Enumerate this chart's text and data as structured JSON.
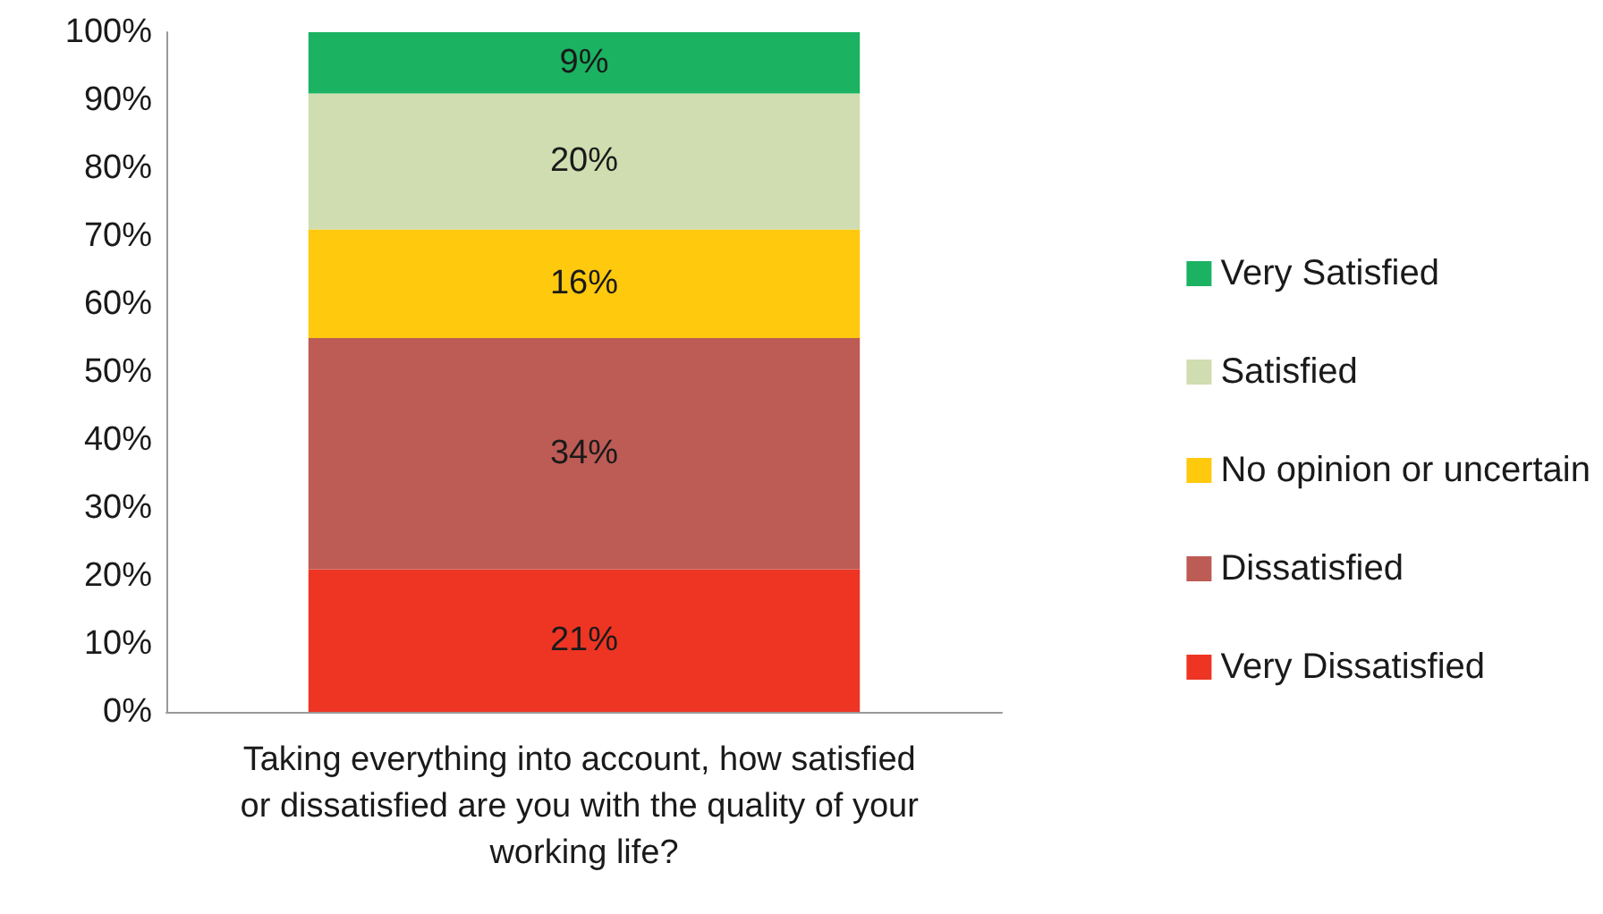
{
  "chart_data": {
    "type": "bar",
    "stacked": true,
    "categories": [
      "Taking everything into account, how satisfied or dissatisfied are you with the quality of your working life?"
    ],
    "series": [
      {
        "name": "Very Dissatisfied",
        "color": "#ee3524",
        "values": [
          21
        ],
        "value_labels": [
          "21%"
        ]
      },
      {
        "name": "Dissatisfied",
        "color": "#bd5b55",
        "values": [
          34
        ],
        "value_labels": [
          "34%"
        ]
      },
      {
        "name": "No opinion or uncertain",
        "color": "#ffc90e",
        "values": [
          16
        ],
        "value_labels": [
          "16%"
        ]
      },
      {
        "name": "Satisfied",
        "color": "#d0ddb0",
        "values": [
          20
        ],
        "value_labels": [
          "20%"
        ]
      },
      {
        "name": "Very Satisfied",
        "color": "#1bb262",
        "values": [
          9
        ],
        "value_labels": [
          "9%"
        ]
      }
    ],
    "ylim": [
      0,
      100
    ],
    "yticks": [
      {
        "value": 0,
        "label": "0%"
      },
      {
        "value": 10,
        "label": "10%"
      },
      {
        "value": 20,
        "label": "20%"
      },
      {
        "value": 30,
        "label": "30%"
      },
      {
        "value": 40,
        "label": "40%"
      },
      {
        "value": 50,
        "label": "50%"
      },
      {
        "value": 60,
        "label": "60%"
      },
      {
        "value": 70,
        "label": "70%"
      },
      {
        "value": 80,
        "label": "80%"
      },
      {
        "value": 90,
        "label": "90%"
      },
      {
        "value": 100,
        "label": "100%"
      }
    ],
    "grid": false,
    "legend": "right"
  }
}
